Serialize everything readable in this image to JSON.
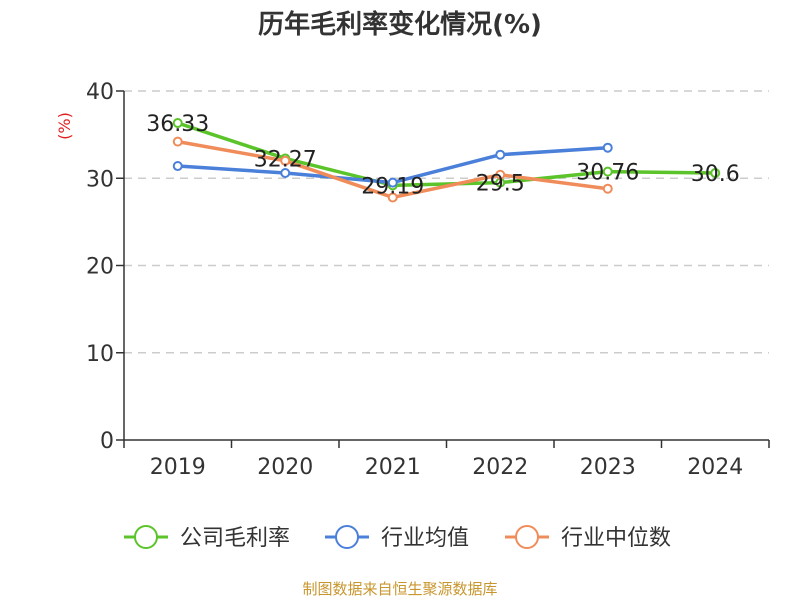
{
  "chart_data": {
    "type": "line",
    "title": "历年毛利率变化情况(%)",
    "ylabel": "(%)",
    "xlabel": "",
    "categories": [
      "2019",
      "2020",
      "2021",
      "2022",
      "2023",
      "2024"
    ],
    "ylim": [
      0,
      40
    ],
    "yticks": [
      "0",
      "10",
      "20",
      "30",
      "40"
    ],
    "grid": true,
    "legend_position": "bottom",
    "series": [
      {
        "name": "公司毛利率",
        "color": "#5bc42a",
        "values": [
          36.33,
          32.27,
          29.19,
          29.5,
          30.76,
          30.6
        ],
        "labels": [
          "36.33",
          "32.27",
          "29.19",
          "29.5",
          "30.76",
          "30.6"
        ]
      },
      {
        "name": "行业均值",
        "color": "#4a80d9",
        "values": [
          31.4,
          30.6,
          29.5,
          32.7,
          33.5,
          null
        ]
      },
      {
        "name": "行业中位数",
        "color": "#f08c5a",
        "values": [
          34.2,
          32.0,
          27.8,
          30.4,
          28.8,
          null
        ]
      }
    ]
  },
  "source": "制图数据来自恒生聚源数据库"
}
